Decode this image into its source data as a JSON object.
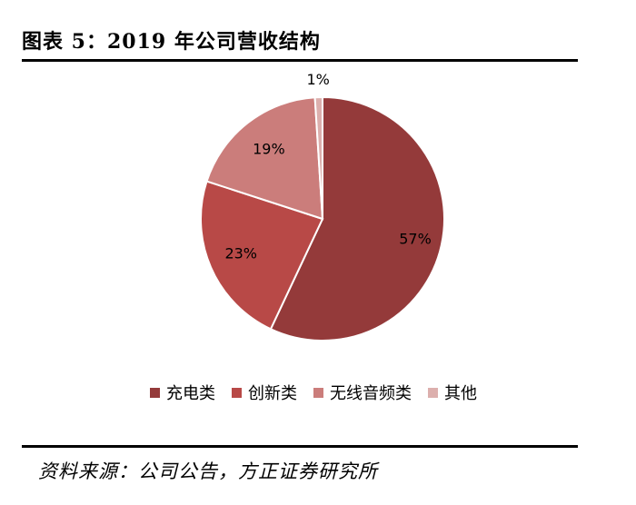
{
  "header": {
    "title": "图表 5：2019 年公司营收结构"
  },
  "footer": {
    "source": "资料来源：公司公告，方正证券研究所"
  },
  "chart_data": {
    "type": "pie",
    "categories": [
      "充电类",
      "创新类",
      "无线音频类",
      "其他"
    ],
    "values": [
      57,
      23,
      19,
      1
    ],
    "data_labels": [
      "57%",
      "23%",
      "19%",
      "1%"
    ],
    "colors": [
      "#943A3A",
      "#B84947",
      "#CB7D7B",
      "#DCAFAD"
    ],
    "legend_position": "bottom",
    "title": ""
  }
}
